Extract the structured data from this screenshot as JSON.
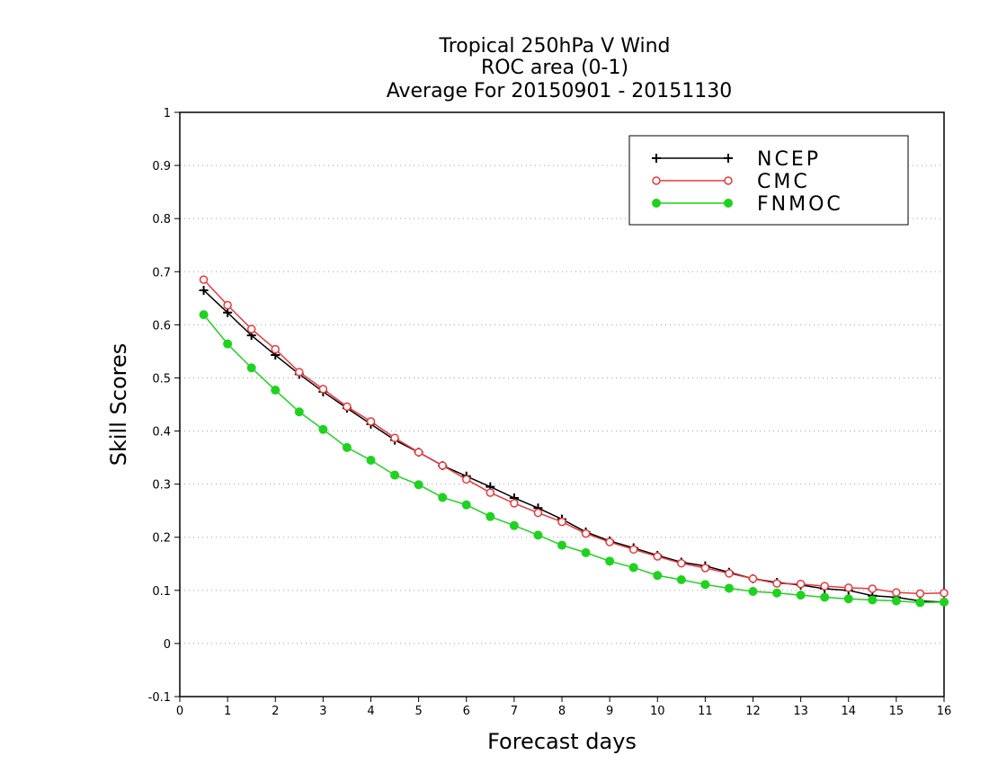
{
  "chart_data": {
    "type": "line",
    "title_lines": [
      "Tropical 250hPa V Wind",
      "ROC area (0-1)",
      "Average For 20150901 - 20151130"
    ],
    "xlabel": "Forecast days",
    "ylabel": "Skill Scores",
    "xlim": [
      0,
      16
    ],
    "ylim": [
      -0.1,
      1
    ],
    "xticks": [
      0,
      1,
      2,
      3,
      4,
      5,
      6,
      7,
      8,
      9,
      10,
      11,
      12,
      13,
      14,
      15,
      16
    ],
    "yticks": [
      -0.1,
      0,
      0.1,
      0.2,
      0.3,
      0.4,
      0.5,
      0.6,
      0.7,
      0.8,
      0.9,
      1
    ],
    "ytick_labels": [
      "-0.1",
      "0",
      "0.1",
      "0.2",
      "0.3",
      "0.4",
      "0.5",
      "0.6",
      "0.7",
      "0.8",
      "0.9",
      "1"
    ],
    "grid": "horizontal dotted",
    "legend_position": "top-right",
    "x": [
      0.5,
      1,
      1.5,
      2,
      2.5,
      3,
      3.5,
      4,
      4.5,
      5,
      5.5,
      6,
      6.5,
      7,
      7.5,
      8,
      8.5,
      9,
      9.5,
      10,
      10.5,
      11,
      11.5,
      12,
      12.5,
      13,
      13.5,
      14,
      14.5,
      15,
      15.5,
      16
    ],
    "series": [
      {
        "name": "NCEP",
        "color": "#000000",
        "marker": "plus",
        "values": [
          0.665,
          0.623,
          0.58,
          0.543,
          0.507,
          0.474,
          0.443,
          0.413,
          0.383,
          0.36,
          0.335,
          0.315,
          0.295,
          0.274,
          0.255,
          0.234,
          0.21,
          0.193,
          0.18,
          0.166,
          0.153,
          0.146,
          0.134,
          0.122,
          0.115,
          0.11,
          0.103,
          0.1,
          0.09,
          0.087,
          0.08,
          0.078
        ]
      },
      {
        "name": "CMC",
        "color": "#e8383d",
        "marker": "open-circle",
        "values": [
          0.685,
          0.637,
          0.592,
          0.554,
          0.511,
          0.479,
          0.446,
          0.418,
          0.387,
          0.36,
          0.335,
          0.309,
          0.284,
          0.264,
          0.246,
          0.229,
          0.207,
          0.191,
          0.177,
          0.164,
          0.151,
          0.142,
          0.132,
          0.122,
          0.113,
          0.112,
          0.108,
          0.105,
          0.103,
          0.096,
          0.094,
          0.095
        ]
      },
      {
        "name": "FNMOC",
        "color": "#1fd21f",
        "marker": "filled-circle",
        "values": [
          0.619,
          0.564,
          0.519,
          0.477,
          0.436,
          0.403,
          0.369,
          0.345,
          0.317,
          0.299,
          0.275,
          0.261,
          0.239,
          0.222,
          0.204,
          0.185,
          0.171,
          0.155,
          0.143,
          0.128,
          0.12,
          0.111,
          0.104,
          0.098,
          0.095,
          0.091,
          0.087,
          0.084,
          0.082,
          0.08,
          0.077,
          0.078
        ]
      }
    ]
  }
}
